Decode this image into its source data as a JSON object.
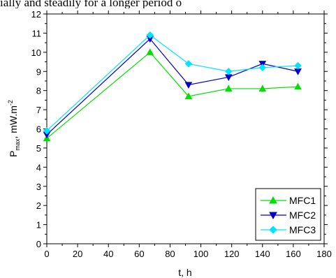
{
  "header_fragment": "ially and steadily for a longer period o",
  "chart_data": {
    "type": "line",
    "title": "",
    "xlabel": "t, h",
    "ylabel": {
      "main": "P",
      "sub": "max",
      "rest": ", mW.m",
      "sup": "-2"
    },
    "xlim": [
      0,
      180
    ],
    "ylim": [
      0,
      12
    ],
    "x_ticks": [
      "0",
      "20",
      "40",
      "60",
      "80",
      "100",
      "120",
      "140",
      "160",
      "180"
    ],
    "y_ticks": [
      "0",
      "1",
      "2",
      "3",
      "4",
      "5",
      "6",
      "7",
      "8",
      "9",
      "10",
      "11",
      "12"
    ],
    "grid": false,
    "legend_position": "bottom-right",
    "series": [
      {
        "name": "MFC1",
        "color": "#00e000",
        "marker": "triangle-up",
        "x": [
          0,
          67,
          92,
          118,
          140,
          163
        ],
        "y": [
          5.5,
          10.0,
          7.7,
          8.1,
          8.1,
          8.2
        ]
      },
      {
        "name": "MFC2",
        "color": "#0000cc",
        "marker": "triangle-down",
        "x": [
          0,
          67,
          92,
          118,
          140,
          163
        ],
        "y": [
          5.7,
          10.7,
          8.3,
          8.7,
          9.4,
          9.0
        ]
      },
      {
        "name": "MFC3",
        "color": "#00e5ff",
        "marker": "diamond",
        "x": [
          0,
          67,
          92,
          118,
          140,
          163
        ],
        "y": [
          5.9,
          10.9,
          9.4,
          9.0,
          9.2,
          9.3
        ]
      }
    ]
  }
}
